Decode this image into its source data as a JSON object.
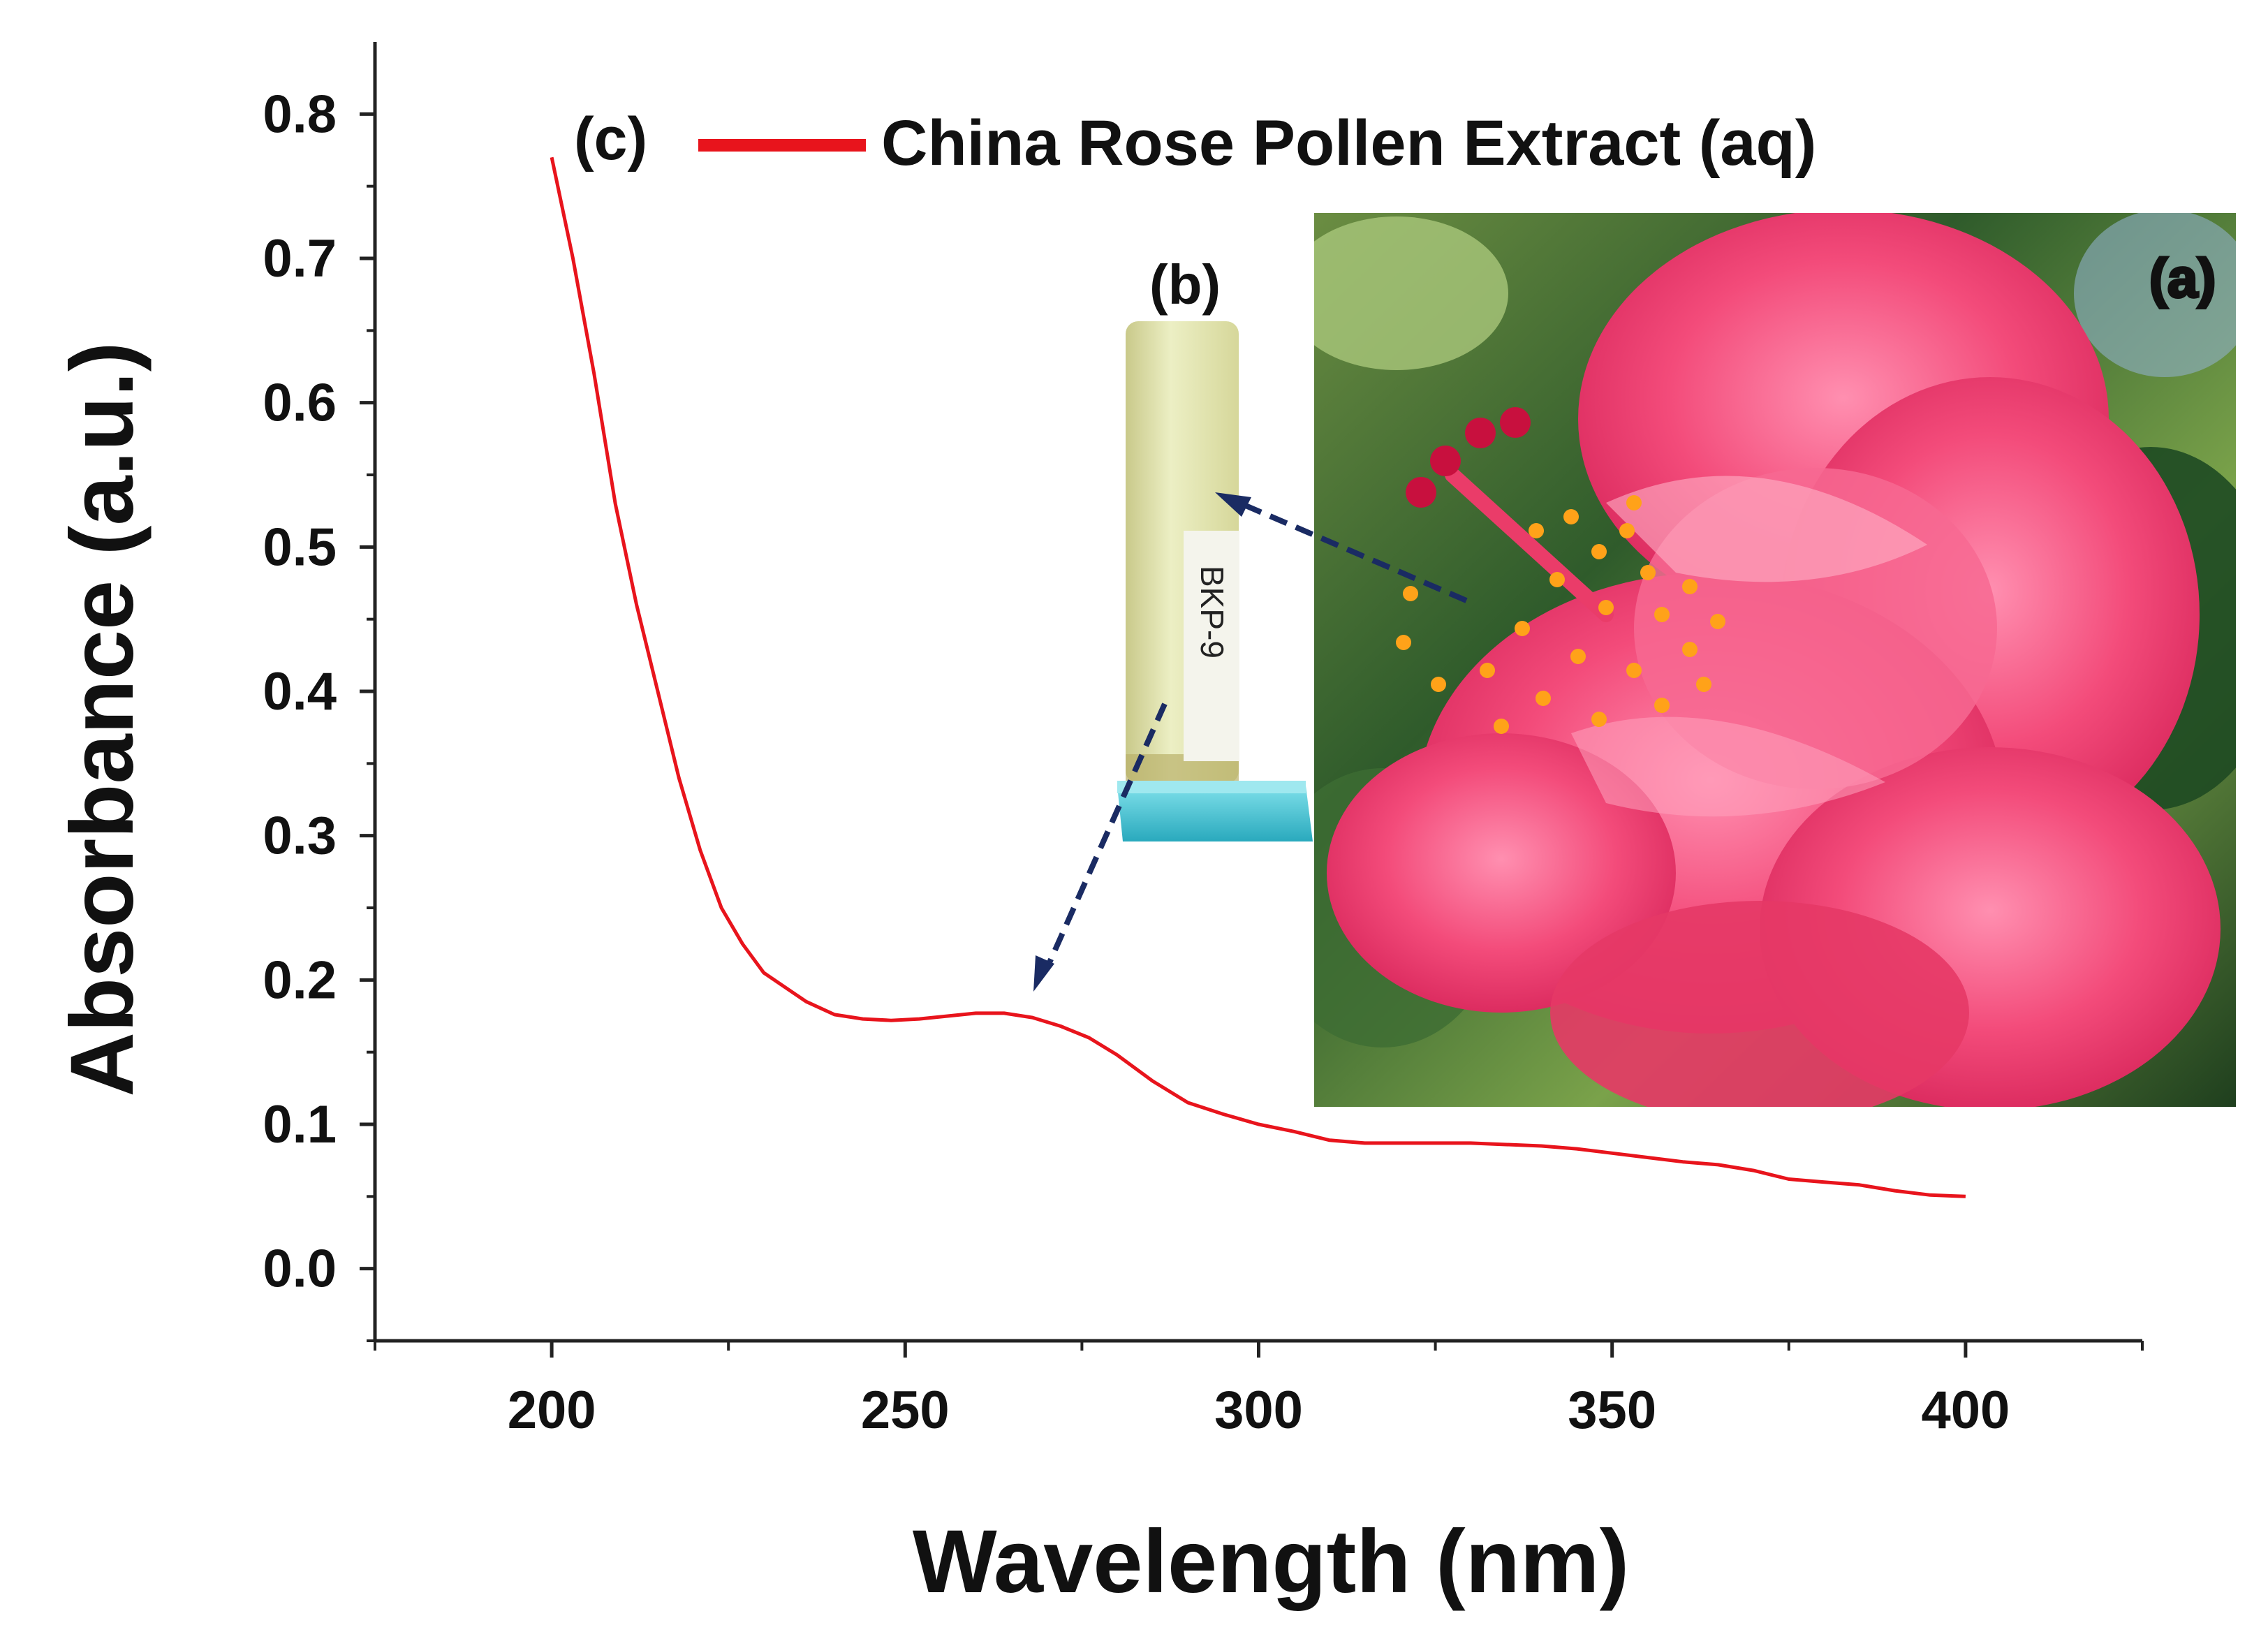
{
  "chart_data": {
    "type": "line",
    "title": "",
    "xlabel": "Wavelength (nm)",
    "ylabel": "Absorbance (a.u.)",
    "xlim": [
      175,
      425
    ],
    "ylim": [
      -0.05,
      0.85
    ],
    "x_ticks": [
      200,
      250,
      300,
      350,
      400
    ],
    "x_tick_labels": [
      "200",
      "250",
      "300",
      "350",
      "400"
    ],
    "y_ticks": [
      0.0,
      0.1,
      0.2,
      0.3,
      0.4,
      0.5,
      0.6,
      0.7,
      0.8
    ],
    "y_tick_labels": [
      "0.0",
      "0.1",
      "0.2",
      "0.3",
      "0.4",
      "0.5",
      "0.6",
      "0.7",
      "0.8"
    ],
    "grid": false,
    "legend": {
      "position": "top",
      "entries": [
        "China Rose Pollen Extract (aq)"
      ]
    },
    "panel_labels": [
      "(a)",
      "(b)",
      "(c)"
    ],
    "series": [
      {
        "name": "China Rose Pollen Extract (aq)",
        "color": "#e8141c",
        "x": [
          200,
          203,
          206,
          209,
          212,
          215,
          218,
          221,
          224,
          227,
          230,
          233,
          236,
          240,
          244,
          248,
          252,
          256,
          260,
          264,
          268,
          272,
          276,
          280,
          285,
          290,
          295,
          300,
          305,
          310,
          315,
          320,
          330,
          340,
          345,
          350,
          355,
          360,
          365,
          370,
          375,
          380,
          385,
          390,
          395,
          400
        ],
        "y": [
          0.77,
          0.7,
          0.62,
          0.53,
          0.46,
          0.4,
          0.34,
          0.29,
          0.25,
          0.225,
          0.205,
          0.195,
          0.185,
          0.176,
          0.173,
          0.172,
          0.173,
          0.175,
          0.177,
          0.177,
          0.174,
          0.168,
          0.16,
          0.148,
          0.13,
          0.115,
          0.107,
          0.1,
          0.095,
          0.089,
          0.087,
          0.087,
          0.087,
          0.085,
          0.083,
          0.08,
          0.077,
          0.074,
          0.072,
          0.068,
          0.062,
          0.06,
          0.058,
          0.054,
          0.051,
          0.05
        ]
      }
    ]
  },
  "inset_b": {
    "tube_label": "BKP-9"
  }
}
